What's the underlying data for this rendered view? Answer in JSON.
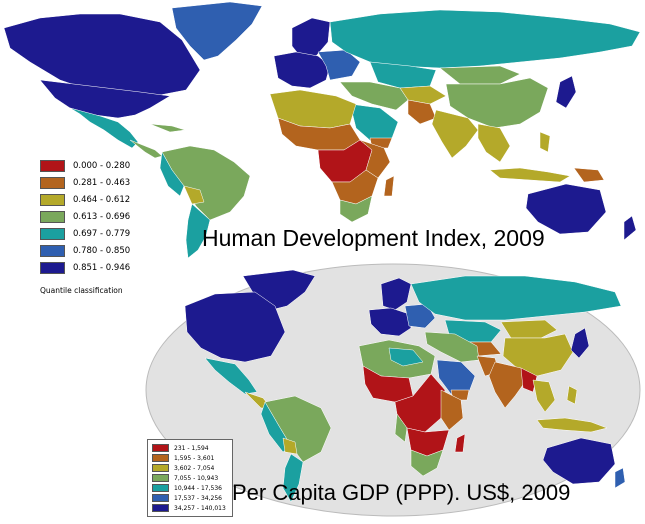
{
  "maps": [
    {
      "title": "Human Development Index, 2009",
      "legend_note": "Quantile classification",
      "legend": [
        {
          "range": "0.000 - 0.280",
          "color": "#b11418"
        },
        {
          "range": "0.281 - 0.463",
          "color": "#b3641e"
        },
        {
          "range": "0.464 - 0.612",
          "color": "#b4a92a"
        },
        {
          "range": "0.613 - 0.696",
          "color": "#7aa85c"
        },
        {
          "range": "0.697 - 0.779",
          "color": "#1ba0a0"
        },
        {
          "range": "0.780 - 0.850",
          "color": "#2f5fb0"
        },
        {
          "range": "0.851 - 0.946",
          "color": "#1d1a8f"
        }
      ]
    },
    {
      "title": "Per Capita GDP (PPP). US$, 2009",
      "legend": [
        {
          "range": "231 - 1,594",
          "color": "#b11418"
        },
        {
          "range": "1,595 - 3,601",
          "color": "#b3641e"
        },
        {
          "range": "3,602 - 7,054",
          "color": "#b4a92a"
        },
        {
          "range": "7,055 - 10,943",
          "color": "#7aa85c"
        },
        {
          "range": "10,944 - 17,536",
          "color": "#1ba0a0"
        },
        {
          "range": "17,537 - 34,256",
          "color": "#2f5fb0"
        },
        {
          "range": "34,257 - 140,013",
          "color": "#1d1a8f"
        }
      ]
    }
  ]
}
